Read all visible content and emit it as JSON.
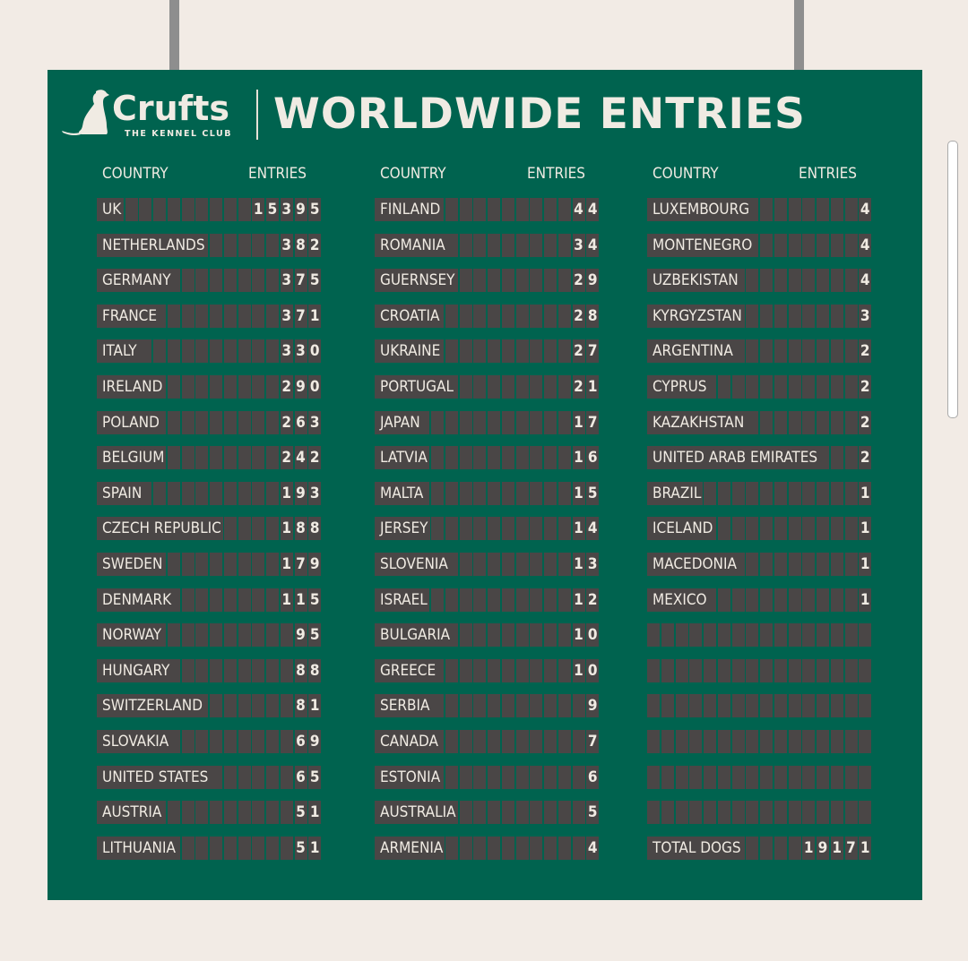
{
  "logo": {
    "brand": "Crufts",
    "sub": "THE KENNEL CLUB"
  },
  "title": "WORLDWIDE ENTRIES",
  "headers": {
    "country": "COUNTRY",
    "entries": "ENTRIES"
  },
  "colors": {
    "background": "#f2ebe5",
    "board": "#00634f",
    "cell": "#4a4646",
    "text": "#f0ebe3"
  },
  "columns": [
    [
      [
        "UK",
        "15395"
      ],
      [
        "NETHERLANDS",
        "382"
      ],
      [
        "GERMANY",
        "375"
      ],
      [
        "FRANCE",
        "371"
      ],
      [
        "ITALY",
        "330"
      ],
      [
        "IRELAND",
        "290"
      ],
      [
        "POLAND",
        "263"
      ],
      [
        "BELGIUM",
        "242"
      ],
      [
        "SPAIN",
        "193"
      ],
      [
        "CZECH REPUBLIC",
        "188"
      ],
      [
        "SWEDEN",
        "179"
      ],
      [
        "DENMARK",
        "115"
      ],
      [
        "NORWAY",
        "95"
      ],
      [
        "HUNGARY",
        "88"
      ],
      [
        "SWITZERLAND",
        "81"
      ],
      [
        "SLOVAKIA",
        "69"
      ],
      [
        "UNITED STATES",
        "65"
      ],
      [
        "AUSTRIA",
        "51"
      ],
      [
        "LITHUANIA",
        "51"
      ]
    ],
    [
      [
        "FINLAND",
        "44"
      ],
      [
        "ROMANIA",
        "34"
      ],
      [
        "GUERNSEY",
        "29"
      ],
      [
        "CROATIA",
        "28"
      ],
      [
        "UKRAINE",
        "27"
      ],
      [
        "PORTUGAL",
        "21"
      ],
      [
        "JAPAN",
        "17"
      ],
      [
        "LATVIA",
        "16"
      ],
      [
        "MALTA",
        "15"
      ],
      [
        "JERSEY",
        "14"
      ],
      [
        "SLOVENIA",
        "13"
      ],
      [
        "ISRAEL",
        "12"
      ],
      [
        "BULGARIA",
        "10"
      ],
      [
        "GREECE",
        "10"
      ],
      [
        "SERBIA",
        "9"
      ],
      [
        "CANADA",
        "7"
      ],
      [
        "ESTONIA",
        "6"
      ],
      [
        "AUSTRALIA",
        "5"
      ],
      [
        "ARMENIA",
        "4"
      ]
    ],
    [
      [
        "LUXEMBOURG",
        "4"
      ],
      [
        "MONTENEGRO",
        "4"
      ],
      [
        "UZBEKISTAN",
        "4"
      ],
      [
        "KYRGYZSTAN",
        "3"
      ],
      [
        "ARGENTINA",
        "2"
      ],
      [
        "CYPRUS",
        "2"
      ],
      [
        "KAZAKHSTAN",
        "2"
      ],
      [
        "UNITED ARAB EMIRATES",
        "2"
      ],
      [
        "BRAZIL",
        "1"
      ],
      [
        "ICELAND",
        "1"
      ],
      [
        "MACEDONIA",
        "1"
      ],
      [
        "MEXICO",
        "1"
      ],
      [
        "",
        ""
      ],
      [
        "",
        ""
      ],
      [
        "",
        ""
      ],
      [
        "",
        ""
      ],
      [
        "",
        ""
      ],
      [
        "",
        ""
      ],
      [
        "TOTAL DOGS",
        "19171"
      ]
    ]
  ]
}
